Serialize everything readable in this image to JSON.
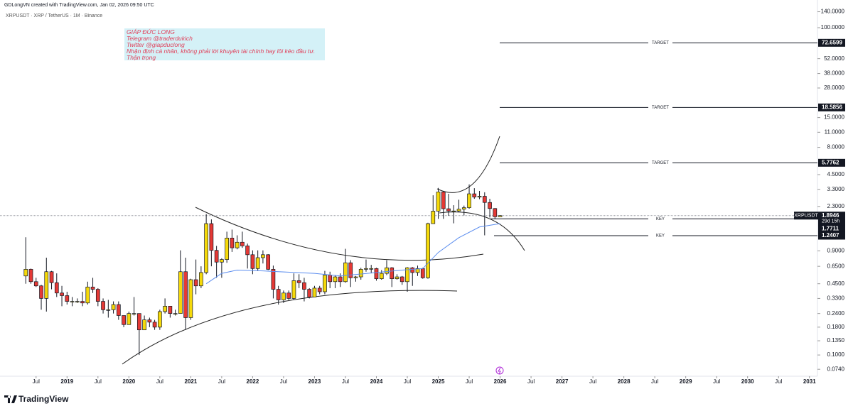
{
  "header": {
    "attribution": "GDLongVN created with TradingView.com, Jan 02, 2026 09:50 UTC",
    "symbol": "XRPUSDT · XRP / TetherUS · 1M · Binance"
  },
  "note": {
    "lines": [
      "GIÁP ĐỨC LONG",
      "Telegram @traderdukich",
      "Twitter @giapduclong",
      "Nhận định cá nhân, không phải lời khuyên tài chính hay lôi kéo đầu tư.",
      "Thận trọng"
    ]
  },
  "footer": {
    "logo": "TradingView"
  },
  "chart_data": {
    "type": "candlestick",
    "log_scale": true,
    "up_color": "#f5d90a",
    "down_color": "#e53935",
    "symbol_tag": "XRPUSDT",
    "countdown": "29d 15h",
    "x": [
      "2018-05",
      "2018-06",
      "2018-07",
      "2018-08",
      "2018-09",
      "2018-10",
      "2018-11",
      "2018-12",
      "2019-01",
      "2019-02",
      "2019-03",
      "2019-04",
      "2019-05",
      "2019-06",
      "2019-07",
      "2019-08",
      "2019-09",
      "2019-10",
      "2019-11",
      "2019-12",
      "2020-01",
      "2020-02",
      "2020-03",
      "2020-04",
      "2020-05",
      "2020-06",
      "2020-07",
      "2020-08",
      "2020-09",
      "2020-10",
      "2020-11",
      "2020-12",
      "2021-01",
      "2021-02",
      "2021-03",
      "2021-04",
      "2021-05",
      "2021-06",
      "2021-07",
      "2021-08",
      "2021-09",
      "2021-10",
      "2021-11",
      "2021-12",
      "2022-01",
      "2022-02",
      "2022-03",
      "2022-04",
      "2022-05",
      "2022-06",
      "2022-07",
      "2022-08",
      "2022-09",
      "2022-10",
      "2022-11",
      "2022-12",
      "2023-01",
      "2023-02",
      "2023-03",
      "2023-04",
      "2023-05",
      "2023-06",
      "2023-07",
      "2023-08",
      "2023-09",
      "2023-10",
      "2023-11",
      "2023-12",
      "2024-01",
      "2024-02",
      "2024-03",
      "2024-04",
      "2024-05",
      "2024-06",
      "2024-07",
      "2024-08",
      "2024-09",
      "2024-10",
      "2024-11",
      "2024-12",
      "2025-01",
      "2025-02",
      "2025-03",
      "2025-04",
      "2025-05",
      "2025-06",
      "2025-07",
      "2025-08",
      "2025-09",
      "2025-10",
      "2025-11",
      "2025-12",
      "2026-01"
    ],
    "open": [
      0.53,
      0.61,
      0.47,
      0.43,
      0.33,
      0.58,
      0.46,
      0.37,
      0.35,
      0.31,
      0.31,
      0.31,
      0.3,
      0.42,
      0.4,
      0.31,
      0.26,
      0.26,
      0.29,
      0.23,
      0.19,
      0.24,
      0.24,
      0.17,
      0.21,
      0.2,
      0.18,
      0.25,
      0.28,
      0.24,
      0.24,
      0.58,
      0.22,
      0.49,
      0.43,
      0.57,
      1.6,
      0.91,
      0.71,
      0.75,
      1.18,
      0.96,
      1.08,
      1.0,
      0.83,
      0.62,
      0.78,
      0.83,
      0.61,
      0.4,
      0.32,
      0.37,
      0.33,
      0.48,
      0.46,
      0.4,
      0.34,
      0.41,
      0.38,
      0.54,
      0.47,
      0.52,
      0.47,
      0.7,
      0.51,
      0.52,
      0.61,
      0.62,
      0.62,
      0.5,
      0.56,
      0.63,
      0.5,
      0.52,
      0.47,
      0.63,
      0.57,
      0.62,
      0.51,
      1.6,
      2.08,
      3.12,
      2.19,
      2.09,
      2.09,
      2.17,
      2.24,
      3.0,
      2.8,
      2.85,
      2.5,
      2.2,
      1.85
    ],
    "high": [
      1.2,
      0.62,
      0.51,
      0.44,
      0.78,
      0.59,
      0.56,
      0.43,
      0.38,
      0.34,
      0.33,
      0.38,
      0.47,
      0.51,
      0.41,
      0.33,
      0.32,
      0.31,
      0.31,
      0.23,
      0.25,
      0.34,
      0.24,
      0.23,
      0.22,
      0.21,
      0.26,
      0.33,
      0.28,
      0.26,
      0.91,
      0.78,
      0.5,
      0.75,
      0.65,
      1.96,
      1.75,
      1.0,
      0.77,
      1.35,
      1.41,
      1.25,
      1.35,
      1.05,
      0.91,
      0.91,
      0.91,
      0.84,
      0.66,
      0.43,
      0.39,
      0.39,
      0.56,
      0.55,
      0.51,
      0.41,
      0.43,
      0.43,
      0.59,
      0.58,
      0.54,
      0.56,
      0.94,
      0.74,
      0.53,
      0.63,
      0.75,
      0.67,
      0.63,
      0.6,
      0.74,
      0.64,
      0.55,
      0.53,
      0.64,
      0.64,
      0.66,
      0.63,
      1.63,
      2.91,
      3.4,
      3.15,
      3.0,
      2.36,
      2.65,
      2.34,
      3.66,
      3.38,
      3.19,
      3.1,
      2.7,
      2.22,
      1.91
    ],
    "low": [
      0.45,
      0.45,
      0.42,
      0.26,
      0.25,
      0.4,
      0.34,
      0.28,
      0.29,
      0.28,
      0.3,
      0.28,
      0.29,
      0.37,
      0.28,
      0.24,
      0.22,
      0.24,
      0.21,
      0.18,
      0.19,
      0.23,
      0.1,
      0.17,
      0.18,
      0.17,
      0.17,
      0.24,
      0.22,
      0.23,
      0.24,
      0.17,
      0.21,
      0.36,
      0.41,
      0.55,
      0.65,
      0.51,
      0.51,
      0.7,
      0.88,
      0.93,
      0.96,
      0.62,
      0.55,
      0.59,
      0.69,
      0.6,
      0.33,
      0.29,
      0.3,
      0.32,
      0.32,
      0.41,
      0.31,
      0.33,
      0.34,
      0.36,
      0.36,
      0.41,
      0.41,
      0.42,
      0.46,
      0.42,
      0.47,
      0.49,
      0.58,
      0.56,
      0.48,
      0.49,
      0.54,
      0.42,
      0.49,
      0.44,
      0.38,
      0.43,
      0.53,
      0.5,
      0.5,
      1.6,
      1.77,
      1.77,
      1.89,
      1.61,
      2.04,
      1.9,
      2.19,
      2.7,
      2.68,
      1.25,
      1.82,
      1.77,
      1.85
    ],
    "close": [
      0.61,
      0.47,
      0.43,
      0.33,
      0.58,
      0.46,
      0.37,
      0.35,
      0.31,
      0.31,
      0.31,
      0.3,
      0.42,
      0.4,
      0.31,
      0.26,
      0.26,
      0.29,
      0.23,
      0.19,
      0.24,
      0.24,
      0.17,
      0.21,
      0.2,
      0.18,
      0.25,
      0.28,
      0.24,
      0.24,
      0.58,
      0.22,
      0.49,
      0.43,
      0.57,
      1.6,
      0.91,
      0.71,
      0.75,
      1.18,
      0.96,
      1.08,
      1.0,
      0.83,
      0.62,
      0.78,
      0.83,
      0.61,
      0.4,
      0.32,
      0.37,
      0.33,
      0.48,
      0.46,
      0.4,
      0.34,
      0.41,
      0.38,
      0.54,
      0.47,
      0.52,
      0.47,
      0.7,
      0.51,
      0.52,
      0.61,
      0.62,
      0.62,
      0.5,
      0.56,
      0.63,
      0.5,
      0.52,
      0.47,
      0.63,
      0.57,
      0.62,
      0.51,
      1.6,
      2.08,
      3.12,
      2.19,
      2.09,
      2.09,
      2.17,
      2.24,
      3.0,
      2.8,
      2.85,
      2.5,
      2.2,
      1.85,
      1.8946
    ],
    "moving_average": {
      "color": "#5b8def",
      "x": [
        "2021-04",
        "2021-07",
        "2021-10",
        "2022-03",
        "2022-06",
        "2023-01",
        "2023-06",
        "2024-01",
        "2024-06",
        "2024-10",
        "2025-01",
        "2025-05",
        "2025-09",
        "2026-01"
      ],
      "values": [
        0.45,
        0.56,
        0.6,
        0.59,
        0.58,
        0.56,
        0.53,
        0.57,
        0.6,
        0.62,
        0.87,
        1.19,
        1.49,
        1.6
      ]
    },
    "levels": [
      {
        "label": "TARGET",
        "value": 72.6599
      },
      {
        "label": "TARGET",
        "value": 18.5856
      },
      {
        "label": "TARGET",
        "value": 5.7762
      },
      {
        "label": "KEY",
        "value": 1.7711
      },
      {
        "label": "KEY",
        "value": 1.2407
      }
    ],
    "ylim": [
      0.0639,
      154.4
    ],
    "yticks": [
      {
        "value": 140,
        "label": "140.0000"
      },
      {
        "value": 100,
        "label": "100.0000"
      },
      {
        "value": 52,
        "label": "52.0000"
      },
      {
        "value": 38,
        "label": "38.0000"
      },
      {
        "value": 28,
        "label": "28.0000"
      },
      {
        "value": 15,
        "label": "15.0000"
      },
      {
        "value": 11,
        "label": "11.0000"
      },
      {
        "value": 8,
        "label": "8.0000"
      },
      {
        "value": 4.5,
        "label": "4.5000"
      },
      {
        "value": 3.3,
        "label": "3.3000"
      },
      {
        "value": 2.3,
        "label": "2.3000"
      },
      {
        "value": 0.9,
        "label": "0.9000"
      },
      {
        "value": 0.65,
        "label": "0.6500"
      },
      {
        "value": 0.45,
        "label": "0.4500"
      },
      {
        "value": 0.33,
        "label": "0.3300"
      },
      {
        "value": 0.24,
        "label": "0.2400"
      },
      {
        "value": 0.18,
        "label": "0.1800"
      },
      {
        "value": 0.135,
        "label": "0.1350"
      },
      {
        "value": 0.1,
        "label": "0.1000"
      },
      {
        "value": 0.074,
        "label": "0.0740"
      }
    ],
    "xlim": [
      "2017-12",
      "2031-02"
    ],
    "xticks": [
      {
        "value": "2018-07",
        "label": "Jul"
      },
      {
        "value": "2019-01",
        "label": "2019"
      },
      {
        "value": "2019-07",
        "label": "Jul"
      },
      {
        "value": "2020-01",
        "label": "2020"
      },
      {
        "value": "2020-07",
        "label": "Jul"
      },
      {
        "value": "2021-01",
        "label": "2021"
      },
      {
        "value": "2021-07",
        "label": "Jul"
      },
      {
        "value": "2022-01",
        "label": "2022"
      },
      {
        "value": "2022-07",
        "label": "Jul"
      },
      {
        "value": "2023-01",
        "label": "2023"
      },
      {
        "value": "2023-07",
        "label": "Jul"
      },
      {
        "value": "2024-01",
        "label": "2024"
      },
      {
        "value": "2024-07",
        "label": "Jul"
      },
      {
        "value": "2025-01",
        "label": "2025"
      },
      {
        "value": "2025-07",
        "label": "Jul"
      },
      {
        "value": "2026-01",
        "label": "2026"
      },
      {
        "value": "2026-07",
        "label": "Jul"
      },
      {
        "value": "2027-01",
        "label": "2027"
      },
      {
        "value": "2027-07",
        "label": "Jul"
      },
      {
        "value": "2028-01",
        "label": "2028"
      },
      {
        "value": "2028-07",
        "label": "Jul"
      },
      {
        "value": "2029-01",
        "label": "2029"
      },
      {
        "value": "2029-07",
        "label": "Jul"
      },
      {
        "value": "2030-01",
        "label": "2030"
      },
      {
        "value": "2030-07",
        "label": "Jul"
      },
      {
        "value": "2031-01",
        "label": "2031"
      }
    ]
  }
}
